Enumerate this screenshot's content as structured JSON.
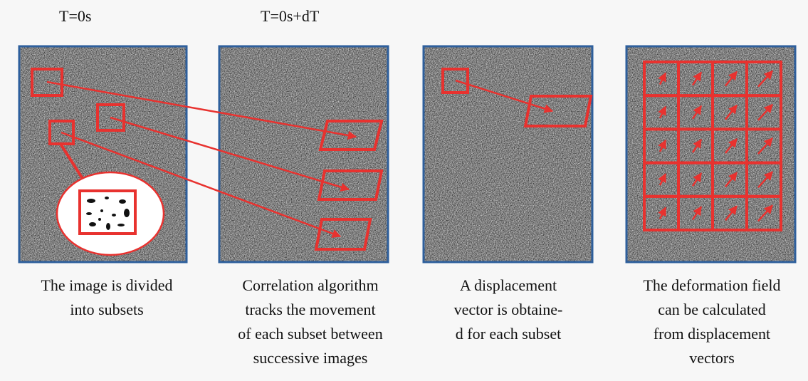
{
  "labels": [
    "T=0s",
    "T=0s+dT"
  ],
  "captions": [
    [
      "The image is divided",
      "into subsets"
    ],
    [
      "Correlation algorithm",
      "tracks the movement",
      "of each subset between",
      "successive images"
    ],
    [
      "A displacement",
      "vector is obtaine-",
      "d for each subset"
    ],
    [
      "The deformation field",
      "can be calculated",
      "from displacement",
      "vectors"
    ]
  ]
}
